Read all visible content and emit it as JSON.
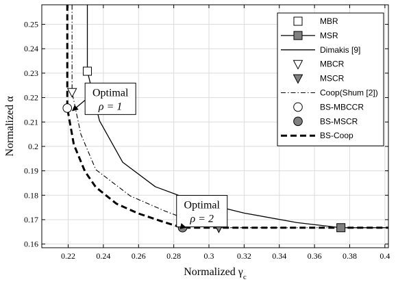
{
  "chart_data": {
    "type": "line",
    "xlabel": "Normalized γ",
    "xlabel_sub": "c",
    "ylabel": "Normalized α",
    "xlim": [
      0.205,
      0.402
    ],
    "ylim": [
      0.1585,
      0.258
    ],
    "xticks": [
      0.22,
      0.24,
      0.26,
      0.28,
      0.3,
      0.32,
      0.34,
      0.36,
      0.38,
      0.4
    ],
    "xtick_labels": [
      "0.22",
      "0.24",
      "0.26",
      "0.28",
      "0.3",
      "0.32",
      "0.34",
      "0.36",
      "0.38",
      "0.4"
    ],
    "yticks": [
      0.16,
      0.17,
      0.18,
      0.19,
      0.2,
      0.21,
      0.22,
      0.23,
      0.24,
      0.25
    ],
    "ytick_labels": [
      "0.16",
      "0.17",
      "0.18",
      "0.19",
      "0.2",
      "0.21",
      "0.22",
      "0.23",
      "0.24",
      "0.25"
    ],
    "grid": true,
    "legend_position": "top-right",
    "series": [
      {
        "name": "MBR",
        "style": "square-open",
        "points": [
          [
            0.2309,
            0.2308
          ]
        ]
      },
      {
        "name": "MSR",
        "style": "square-gray",
        "points": [
          [
            0.375,
            0.1667
          ]
        ]
      },
      {
        "name": "Dimakis [9]",
        "style": "solid",
        "points": [
          [
            0.2309,
            0.262
          ],
          [
            0.2309,
            0.2308
          ],
          [
            0.2378,
            0.2105
          ],
          [
            0.251,
            0.1935
          ],
          [
            0.2695,
            0.1835
          ],
          [
            0.29,
            0.178
          ],
          [
            0.32,
            0.1727
          ],
          [
            0.35,
            0.1688
          ],
          [
            0.375,
            0.1667
          ],
          [
            0.402,
            0.1667
          ]
        ]
      },
      {
        "name": "MBCR",
        "style": "triangle-open",
        "points": [
          [
            0.2222,
            0.2222
          ]
        ]
      },
      {
        "name": "MSCR",
        "style": "triangle-gray",
        "points": [
          [
            0.3056,
            0.1667
          ]
        ]
      },
      {
        "name": "Coop(Shum [2])",
        "style": "dashdot",
        "points": [
          [
            0.2222,
            0.262
          ],
          [
            0.2222,
            0.2222
          ],
          [
            0.2272,
            0.205
          ],
          [
            0.2357,
            0.1905
          ],
          [
            0.2553,
            0.1797
          ],
          [
            0.2751,
            0.1735
          ],
          [
            0.2898,
            0.1695
          ],
          [
            0.3056,
            0.1667
          ],
          [
            0.402,
            0.1667
          ]
        ]
      },
      {
        "name": "BS-MBCCR",
        "style": "circle-open",
        "points": [
          [
            0.2195,
            0.2157
          ]
        ]
      },
      {
        "name": "BS-MSCR",
        "style": "circle-gray",
        "points": [
          [
            0.285,
            0.1667
          ]
        ]
      },
      {
        "name": "BS-Coop",
        "style": "dashed-bold",
        "points": [
          [
            0.2195,
            0.262
          ],
          [
            0.2195,
            0.2157
          ],
          [
            0.2232,
            0.2008
          ],
          [
            0.2295,
            0.1898
          ],
          [
            0.2357,
            0.1833
          ],
          [
            0.2475,
            0.1765
          ],
          [
            0.26,
            0.1725
          ],
          [
            0.2753,
            0.1688
          ],
          [
            0.285,
            0.1667
          ],
          [
            0.402,
            0.1667
          ]
        ]
      }
    ],
    "annotations": [
      {
        "line1": "Optimal",
        "line2": "ρ = 1",
        "target": [
          0.2224,
          0.2146
        ],
        "box_anchor": [
          0.244,
          0.2195
        ]
      },
      {
        "line1": "Optimal",
        "line2": "ρ = 2",
        "target": [
          0.2869,
          0.1668
        ],
        "box_anchor": [
          0.296,
          0.1735
        ]
      }
    ]
  }
}
